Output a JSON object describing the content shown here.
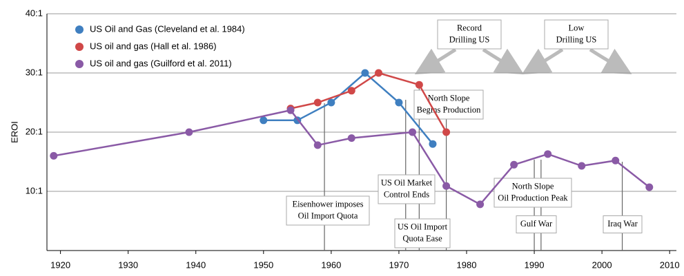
{
  "chart_data": {
    "type": "line",
    "ylabel": "EROI",
    "xlim": [
      1918,
      2011
    ],
    "xticks": [
      1920,
      1930,
      1940,
      1950,
      1960,
      1970,
      1980,
      1990,
      2000,
      2010
    ],
    "ylim": [
      0,
      40
    ],
    "yticks": [
      {
        "value": 10,
        "label": "10:1"
      },
      {
        "value": 20,
        "label": "20:1"
      },
      {
        "value": 30,
        "label": "30:1"
      },
      {
        "value": 40,
        "label": "40:1"
      }
    ],
    "grid": true,
    "legend": "upper left",
    "series": [
      {
        "name": "US Oil and Gas (Cleveland et al. 1984)",
        "color": "#3f7fc0",
        "x": [
          1950,
          1955,
          1960,
          1965,
          1970,
          1975
        ],
        "values": [
          22,
          22,
          25,
          30,
          25,
          18
        ]
      },
      {
        "name": "US oil and gas (Hall et al. 1986)",
        "color": "#d04848",
        "x": [
          1954,
          1958,
          1963,
          1967,
          1973,
          1977
        ],
        "values": [
          24,
          25,
          27,
          30,
          28,
          20
        ]
      },
      {
        "name": "US oil and gas (Guilford et al. 2011)",
        "color": "#8a5aa6",
        "x": [
          1919,
          1939,
          1954,
          1958,
          1963,
          1972,
          1977,
          1982,
          1987,
          1992,
          1997,
          2002,
          2007
        ],
        "values": [
          16,
          20,
          23.7,
          17.8,
          19,
          20,
          10.9,
          7.8,
          14.5,
          16.3,
          14.3,
          15.2,
          10.7
        ]
      }
    ],
    "annotations": [
      {
        "lines": [
          "Record",
          "Drilling US"
        ]
      },
      {
        "lines": [
          "Low",
          "Drilling US"
        ]
      },
      {
        "lines": [
          "North Slope",
          "Begins Production"
        ],
        "years": [
          1977
        ]
      },
      {
        "lines": [
          "US Oil Market",
          "Control Ends"
        ],
        "years": [
          1971
        ]
      },
      {
        "lines": [
          "Eisenhower imposes",
          "Oil Import Quota"
        ],
        "years": [
          1959
        ]
      },
      {
        "lines": [
          "US Oil Import",
          "Quota Ease"
        ],
        "years": [
          1973
        ]
      },
      {
        "lines": [
          "North Slope",
          "Oil Production Peak"
        ]
      },
      {
        "lines": [
          "Gulf War"
        ],
        "years": [
          1990,
          1991
        ]
      },
      {
        "lines": [
          "Iraq War"
        ],
        "years": [
          2003
        ]
      }
    ]
  }
}
